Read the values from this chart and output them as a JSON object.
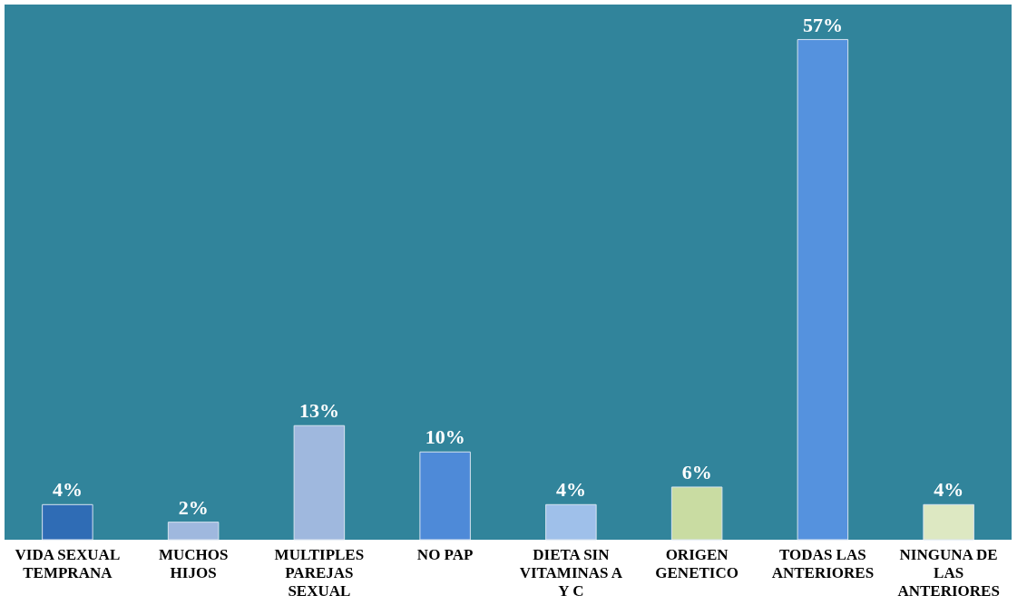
{
  "chart_data": {
    "type": "bar",
    "categories": [
      "VIDA SEXUAL\nTEMPRANA",
      "MUCHOS\nHIJOS",
      "MULTIPLES\nPAREJAS\nSEXUAL",
      "NO PAP",
      "DIETA SIN\nVITAMINAS A\nY C",
      "ORIGEN\nGENETICO",
      "TODAS LAS\nANTERIORES",
      "NINGUNA DE\nLAS\nANTERIORES"
    ],
    "values": [
      4,
      2,
      13,
      10,
      4,
      6,
      57,
      4
    ],
    "value_labels": [
      "4%",
      "2%",
      "13%",
      "10%",
      "4%",
      "6%",
      "57%",
      "4%"
    ],
    "colors": [
      "#2f6cb5",
      "#9fb8de",
      "#9fb8de",
      "#4e8ad8",
      "#9fc0ea",
      "#c9dca2",
      "#5592de",
      "#dde8c2"
    ],
    "tick_labels": "x",
    "legend": false
  }
}
